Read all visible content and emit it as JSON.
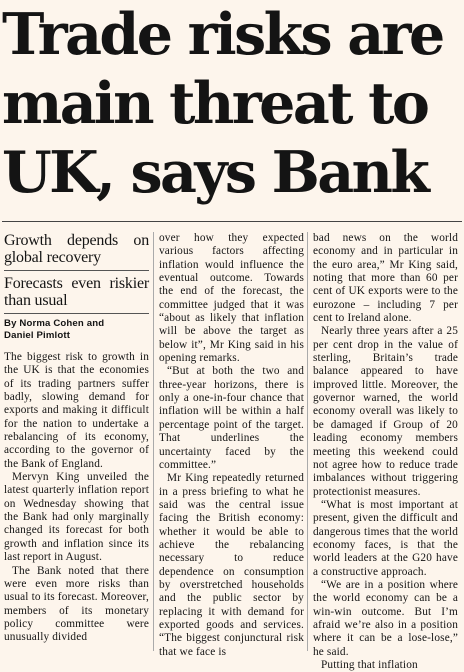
{
  "headline": {
    "line1": "Trade risks are",
    "line2": "main threat to",
    "line3": "UK, says Bank"
  },
  "subheads": {
    "kicker": "Growth depends on global recovery",
    "secondary": "Forecasts even riskier than usual"
  },
  "byline": {
    "line1": "By Norma Cohen and",
    "line2": "Daniel Pimlott"
  },
  "body": {
    "col1": [
      "The biggest risk to growth in the UK is that the economies of its trading partners suffer badly, slowing demand for exports and making it difficult for the nation to undertake a rebalancing of its economy, according to the governor of the Bank of England.",
      "Mervyn King unveiled the latest quarterly inflation report on Wednesday showing that the Bank had only marginally changed its forecast for both growth and inflation since its last report in August.",
      "The Bank noted that there were even more risks than usual to its forecast. Moreover, members of its monetary policy committee were unusually divided"
    ],
    "col2": [
      "over how they expected various factors affecting inflation would influence the eventual outcome. Towards the end of the forecast, the committee judged that it was “about as likely that inflation will be above the target as below it”, Mr King said in his opening remarks.",
      "“But at both the two and three-year horizons, there is only a one-in-four chance that inflation will be within a half percentage point of the target. That underlines the uncertainty faced by the committee.”",
      "Mr King repeatedly returned in a press briefing to what he said was the central issue facing the British economy: whether it would be able to achieve the rebalancing necessary to reduce dependence on consumption by overstretched households and the public sector by replacing it with demand for exported goods and services. “The biggest conjunctural risk that we face is"
    ],
    "col3": [
      "bad news on the world economy and in particular in the euro area,” Mr King said, noting that more than 60 per cent of UK exports were to the eurozone – including 7 per cent to Ireland alone.",
      "Nearly three years after a 25 per cent drop in the value of sterling, Britain’s trade balance appeared to have improved little. Moreover, the governor warned, the world economy overall was likely to be damaged if Group of 20 leading economy members meeting this weekend could not agree how to reduce trade imbalances without triggering protectionist measures.",
      "“What is most important at present, given the difficult and dangerous times that the world economy faces, is that the world leaders at the G20 have a constructive approach.",
      "“We are in a position where the world economy can be a win-win outcome. But I’m afraid we’re also in a position where it can be a lose-lose,” he said.",
      "Putting that inflation"
    ]
  }
}
